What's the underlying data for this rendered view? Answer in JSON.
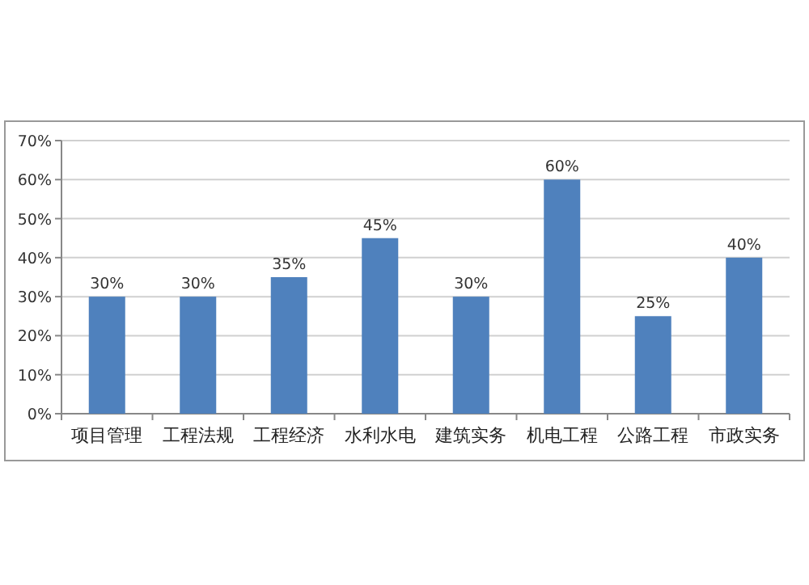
{
  "chart_data": {
    "type": "bar",
    "categories": [
      "项目管理",
      "工程法规",
      "工程经济",
      "水利水电",
      "建筑实务",
      "机电工程",
      "公路工程",
      "市政实务"
    ],
    "values": [
      30,
      30,
      35,
      45,
      30,
      60,
      25,
      40
    ],
    "value_labels": [
      "30%",
      "30%",
      "35%",
      "45%",
      "30%",
      "60%",
      "25%",
      "40%"
    ],
    "color": "#4f81bd",
    "ylim": [
      0,
      70
    ],
    "yticks": [
      {
        "value": 0,
        "label": "0%"
      },
      {
        "value": 10,
        "label": "10%"
      },
      {
        "value": 20,
        "label": "20%"
      },
      {
        "value": 30,
        "label": "30%"
      },
      {
        "value": 40,
        "label": "40%"
      },
      {
        "value": 50,
        "label": "50%"
      },
      {
        "value": 60,
        "label": "60%"
      },
      {
        "value": 70,
        "label": "70%"
      }
    ],
    "grid": "y"
  }
}
